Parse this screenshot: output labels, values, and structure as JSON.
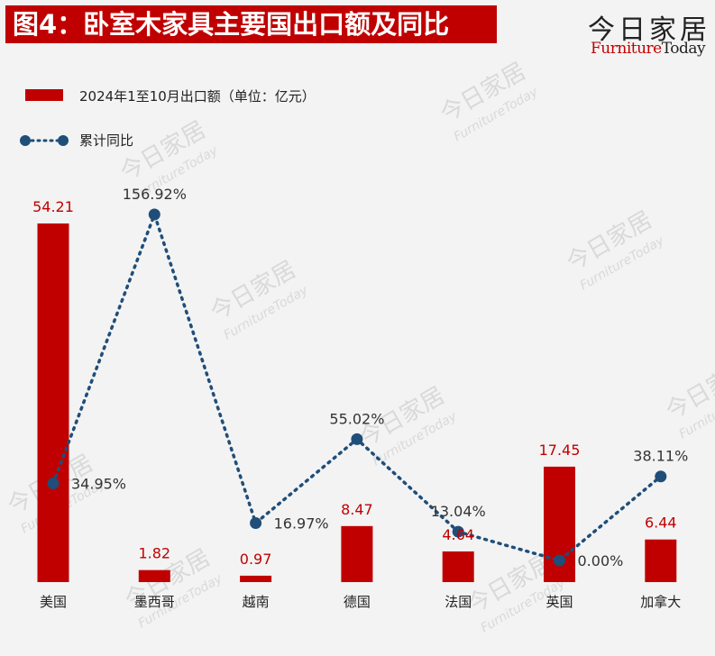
{
  "header": {
    "title": "图4：卧室木家具主要国出口额及同比",
    "brand_cn": "今日家居",
    "brand_en_part1": "Furniture",
    "brand_en_part2": "Today"
  },
  "chart_data": {
    "type": "bar",
    "title": "图4：卧室木家具主要国出口额及同比",
    "categories": [
      "美国",
      "墨西哥",
      "越南",
      "德国",
      "法国",
      "英国",
      "加拿大"
    ],
    "series": [
      {
        "name": "2024年1至10月出口额（单位：亿元）",
        "type": "bar",
        "values": [
          54.21,
          1.82,
          0.97,
          8.47,
          4.64,
          17.45,
          6.44
        ],
        "labels": [
          "54.21",
          "1.82",
          "0.97",
          "8.47",
          "4.64",
          "17.45",
          "6.44"
        ],
        "color": "#c00000"
      },
      {
        "name": "累计同比",
        "type": "line",
        "values": [
          34.95,
          156.92,
          16.97,
          55.02,
          13.04,
          0.0,
          38.11
        ],
        "labels": [
          "34.95%",
          "156.92%",
          "16.97%",
          "55.02%",
          "13.04%",
          "0.00%",
          "38.11%"
        ],
        "color": "#1f4e79"
      }
    ],
    "legend": "top-left",
    "grid": false
  }
}
